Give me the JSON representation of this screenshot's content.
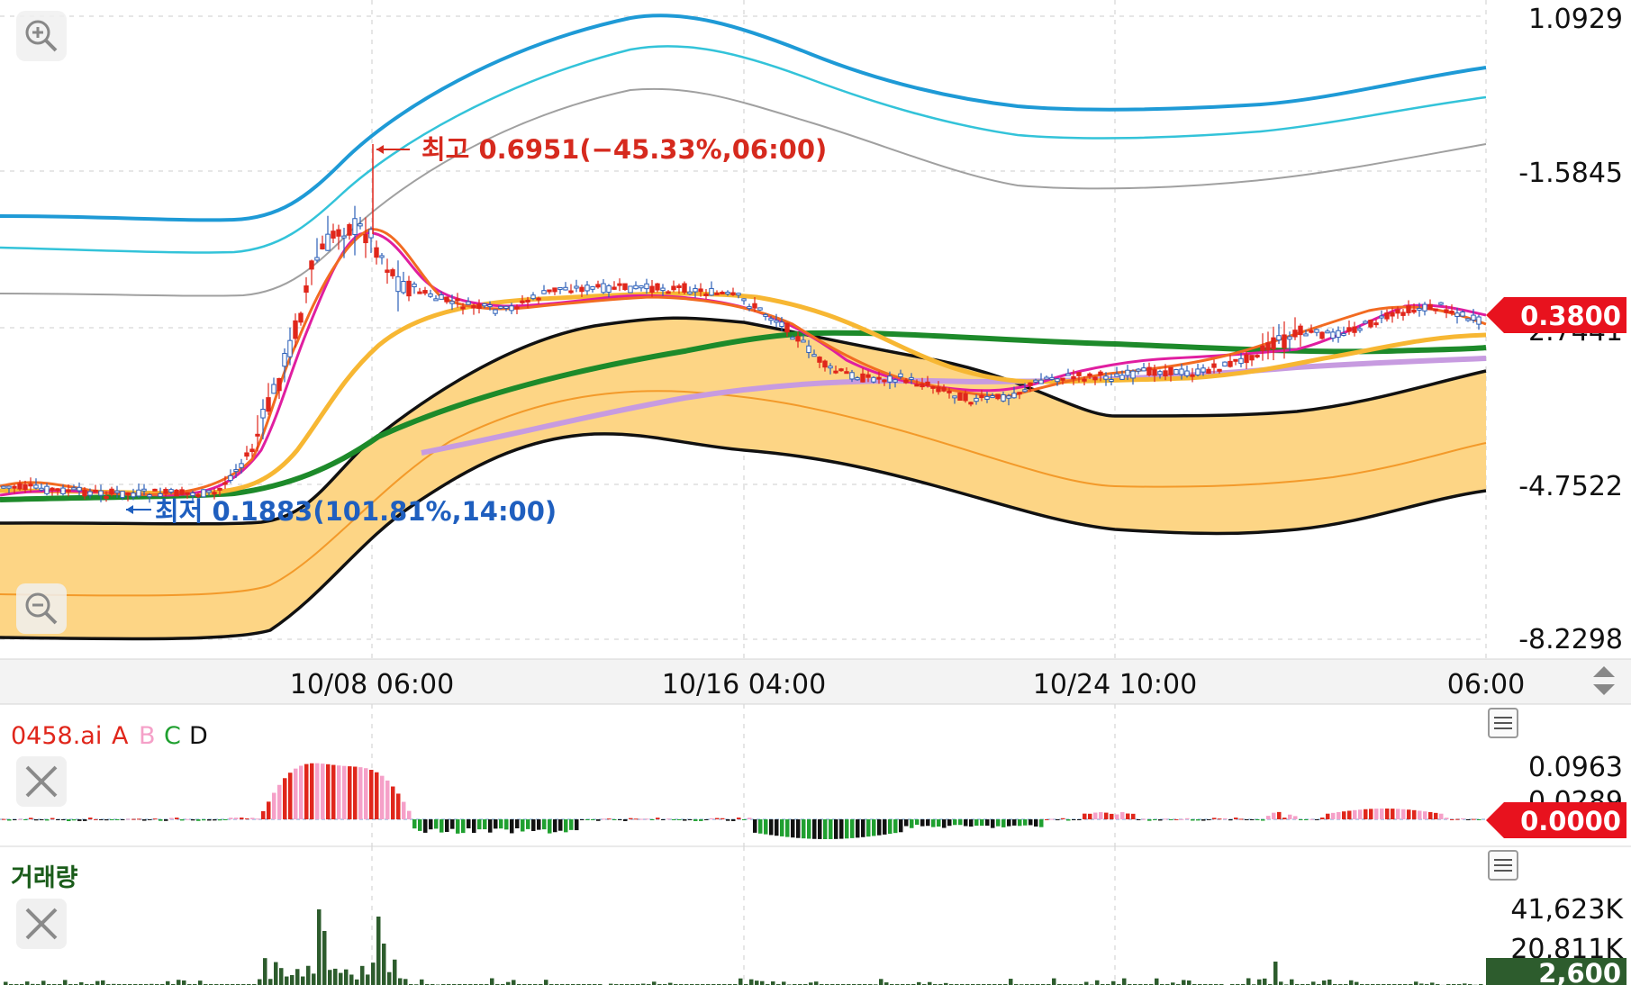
{
  "chart_data": [
    {
      "type": "candlestick",
      "panel": "price",
      "y_ticks": [
        "1.0929",
        "-1.5845",
        "-4.7522",
        "-8.2298"
      ],
      "y_overlap_tick": "2.7441",
      "x_ticks": [
        "10/08 06:00",
        "10/16 04:00",
        "10/24 10:00",
        "06:00"
      ],
      "last_price_badge": "0.3800",
      "annotation_high": "최고 0.6951(−45.33%,06:00)",
      "annotation_low": "최저 0.1883(101.81%,14:00)",
      "colors": {
        "up": "#e0261b",
        "down": "#2c5fb8",
        "band_fill": "#fdd585",
        "band_edge": "#111111",
        "band_mid": "#f39a2a",
        "ma_orange": "#f26b21",
        "ma_magenta": "#e01ea0",
        "ma_yellow": "#f7b733",
        "ma_green": "#1d8a2a",
        "ma_lavender": "#c79be0",
        "upper_blue": "#1e9ad6",
        "upper_cyan": "#33c3d9",
        "upper_gray": "#9e9e9e"
      }
    },
    {
      "type": "histogram",
      "panel": "indicator",
      "title": "0458.ai",
      "legend": [
        "A",
        "B",
        "C",
        "D"
      ],
      "legend_colors": [
        "#e0261b",
        "#f5a0c8",
        "#20a030",
        "#111111"
      ],
      "y_ticks": [
        "0.0963",
        "0.0289"
      ],
      "last_value_badge": "0.0000"
    },
    {
      "type": "bar",
      "panel": "volume",
      "title": "거래량",
      "y_ticks": [
        "41,623K",
        "20,811K"
      ],
      "last_value_badge": "2,600"
    }
  ],
  "icons": {
    "zoom_in": "zoom-in-icon",
    "zoom_out": "zoom-out-icon",
    "close": "close-icon",
    "menu": "menu-icon",
    "scroll": "up-down-arrows-icon"
  }
}
